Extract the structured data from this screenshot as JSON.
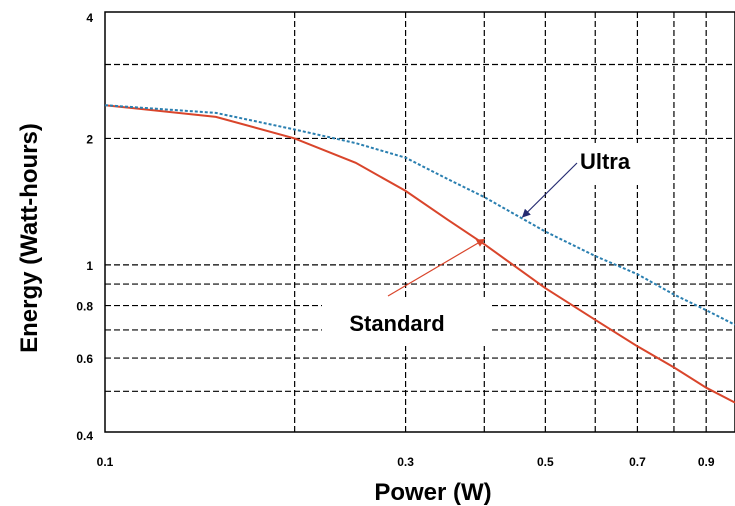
{
  "chart_data": {
    "type": "line",
    "xlabel": "Power (W)",
    "ylabel": "Energy (Watt-hours)",
    "x_scale": "log",
    "y_scale": "log",
    "xlim": [
      0.1,
      1.0
    ],
    "ylim": [
      0.4,
      4
    ],
    "x_ticks": [
      {
        "value": 0.1,
        "label": "0.1"
      },
      {
        "value": 0.3,
        "label": "0.3"
      },
      {
        "value": 0.5,
        "label": "0.5"
      },
      {
        "value": 0.7,
        "label": "0.7"
      },
      {
        "value": 0.9,
        "label": "0.9"
      }
    ],
    "y_ticks": [
      {
        "value": 0.4,
        "label": "0.4"
      },
      {
        "value": 0.6,
        "label": "0.6"
      },
      {
        "value": 0.8,
        "label": "0.8"
      },
      {
        "value": 1,
        "label": "1"
      },
      {
        "value": 2,
        "label": "2"
      },
      {
        "value": 4,
        "label": "4"
      }
    ],
    "x_gridlines": [
      0.2,
      0.3,
      0.4,
      0.5,
      0.6,
      0.7,
      0.8,
      0.9
    ],
    "y_gridlines": [
      0.5,
      0.6,
      0.7,
      0.8,
      0.9,
      1,
      2,
      3
    ],
    "grid": true,
    "grid_style": "dashed",
    "series": [
      {
        "name": "Standard",
        "color": "#d9452b",
        "style": "solid",
        "x": [
          0.1,
          0.15,
          0.2,
          0.25,
          0.3,
          0.35,
          0.4,
          0.5,
          0.6,
          0.7,
          0.8,
          0.9,
          1.0
        ],
        "y": [
          2.4,
          2.25,
          2.0,
          1.75,
          1.5,
          1.28,
          1.12,
          0.88,
          0.74,
          0.64,
          0.57,
          0.51,
          0.47
        ]
      },
      {
        "name": "Ultra",
        "color": "#2a7fb0",
        "style": "dotted",
        "x": [
          0.1,
          0.15,
          0.2,
          0.25,
          0.3,
          0.35,
          0.4,
          0.5,
          0.6,
          0.7,
          0.8,
          0.9,
          1.0
        ],
        "y": [
          2.4,
          2.3,
          2.1,
          1.95,
          1.8,
          1.6,
          1.45,
          1.2,
          1.05,
          0.95,
          0.85,
          0.78,
          0.72
        ]
      }
    ],
    "annotations": [
      {
        "text": "Ultra",
        "target_series": "Ultra",
        "arrow_color": "#262c72",
        "arrow_to": {
          "x": 0.46,
          "y": 1.3
        }
      },
      {
        "text": "Standard",
        "target_series": "Standard",
        "arrow_color": "#d9452b",
        "arrow_to": {
          "x": 0.4,
          "y": 1.15
        }
      }
    ]
  }
}
